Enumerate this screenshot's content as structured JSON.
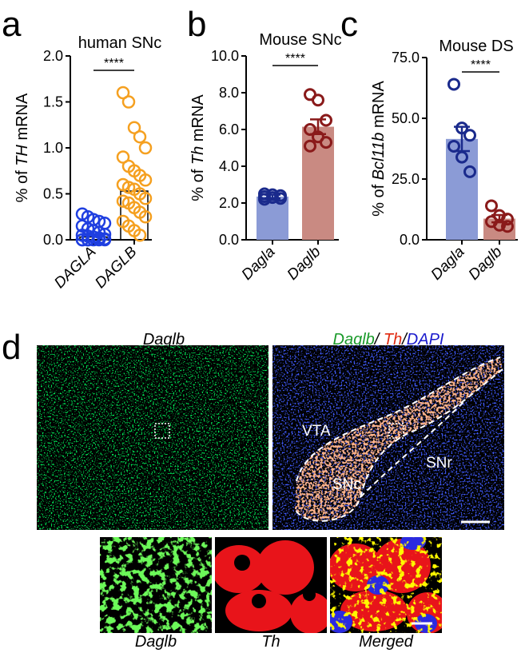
{
  "panels": {
    "a": "a",
    "b": "b",
    "c": "c",
    "d": "d"
  },
  "colors": {
    "blue": "#1f3fe0",
    "orange": "#f5a020",
    "navy": "#1a2a8c",
    "darkred": "#8a1a1a",
    "bar_blue": "#8b9bd6",
    "bar_red": "#c98a82"
  },
  "chart_data": [
    {
      "type": "scatter",
      "panel": "a",
      "title": "human SNc",
      "ylabel": "% of TH mRNA",
      "ylabel_prefix": "% of ",
      "ylabel_gene": "TH",
      "ylabel_suffix": " mRNA",
      "ylim": [
        0,
        2.0
      ],
      "ticks": [
        "0.0",
        "0.5",
        "1.0",
        "1.5",
        "2.0"
      ],
      "tick_values": [
        0,
        0.5,
        1.0,
        1.5,
        2.0
      ],
      "categories": [
        "DAGLA",
        "DAGLB"
      ],
      "significance": "****",
      "bar_means": [
        0.03,
        0.53
      ],
      "series": [
        {
          "values": [
            0.28,
            0.25,
            0.22,
            0.2,
            0.18,
            0.15,
            0.12,
            0.1,
            0.08,
            0.06,
            0.05,
            0.04,
            0.03,
            0.02,
            0.01,
            0.0,
            0.0,
            0.0,
            0.0,
            0.0,
            0.0,
            0.0
          ]
        },
        {
          "values": [
            1.6,
            1.5,
            1.22,
            1.12,
            1.0,
            0.9,
            0.8,
            0.75,
            0.7,
            0.65,
            0.6,
            0.57,
            0.55,
            0.5,
            0.45,
            0.42,
            0.4,
            0.35,
            0.3,
            0.25,
            0.2,
            0.15,
            0.1,
            0.05
          ]
        }
      ]
    },
    {
      "type": "bar",
      "panel": "b",
      "title": "Mouse SNc",
      "ylabel": "% of Th mRNA",
      "ylabel_prefix": "% of ",
      "ylabel_gene": "Th",
      "ylabel_suffix": " mRNA",
      "ylim": [
        0,
        10.0
      ],
      "ticks": [
        "0.0",
        "2.0",
        "4.0",
        "6.0",
        "8.0",
        "10.0"
      ],
      "tick_values": [
        0,
        2,
        4,
        6,
        8,
        10
      ],
      "categories": [
        "Dagla",
        "Daglb"
      ],
      "significance": "****",
      "values": [
        2.35,
        6.15
      ],
      "errors": [
        0.1,
        0.4
      ],
      "points": [
        [
          2.5,
          2.45,
          2.4,
          2.35,
          2.3,
          2.25,
          2.2
        ],
        [
          7.9,
          7.6,
          6.5,
          6.0,
          5.6,
          5.3,
          5.1
        ]
      ]
    },
    {
      "type": "bar",
      "panel": "c",
      "title": "Mouse DS",
      "ylabel": "% of Bcl11b mRNA",
      "ylabel_prefix": "% of ",
      "ylabel_gene": "Bcl11b",
      "ylabel_suffix": " mRNA",
      "ylim": [
        0,
        75.0
      ],
      "ticks": [
        "0.0",
        "25.0",
        "50.0",
        "75.0"
      ],
      "tick_values": [
        0,
        25,
        50,
        75
      ],
      "categories": [
        "Dagla",
        "Daglb"
      ],
      "significance": "****",
      "values": [
        41.5,
        8.7
      ],
      "errors": [
        5.0,
        1.5
      ],
      "points": [
        [
          64.0,
          46.0,
          43.0,
          38.5,
          34.0,
          28.0
        ],
        [
          14.0,
          10.0,
          8.5,
          7.5,
          6.0,
          5.5
        ]
      ]
    }
  ],
  "micrographs": {
    "left_title": "Daglb",
    "right_title_parts": [
      {
        "text": "Daglb",
        "color": "#1a9a2a"
      },
      {
        "text": "/ ",
        "color": "#000000"
      },
      {
        "text": "Th",
        "color": "#e02a10"
      },
      {
        "text": "/",
        "color": "#000000"
      },
      {
        "text": "DAPI",
        "color": "#1a1acc"
      }
    ],
    "region_labels": [
      "VTA",
      "SNc",
      "SNr"
    ],
    "inset_captions": [
      "Daglb",
      "Th",
      "Merged"
    ]
  }
}
